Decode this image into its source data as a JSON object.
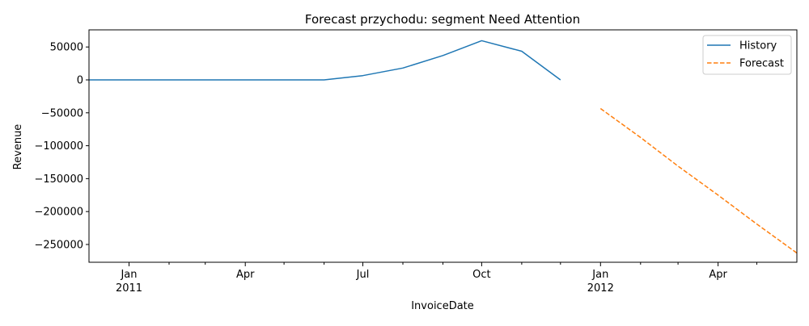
{
  "chart_data": {
    "type": "line",
    "title": "Forecast przychodu: segment Need Attention",
    "xlabel": "InvoiceDate",
    "ylabel": "Revenue",
    "x_range": [
      "2010-12-01",
      "2012-06-01"
    ],
    "ylim": [
      -277000,
      76000
    ],
    "yticks": [
      50000,
      0,
      -50000,
      -100000,
      -150000,
      -200000,
      -250000
    ],
    "ytick_labels": [
      "50000",
      "0",
      "−50000",
      "−100000",
      "−150000",
      "−200000",
      "−250000"
    ],
    "xticks_major": [
      {
        "date": "2011-01-01",
        "label": "Jan",
        "sublabel": "2011"
      },
      {
        "date": "2011-04-01",
        "label": "Apr",
        "sublabel": ""
      },
      {
        "date": "2011-07-01",
        "label": "Jul",
        "sublabel": ""
      },
      {
        "date": "2011-10-01",
        "label": "Oct",
        "sublabel": ""
      },
      {
        "date": "2012-01-01",
        "label": "Jan",
        "sublabel": "2012"
      },
      {
        "date": "2012-04-01",
        "label": "Apr",
        "sublabel": ""
      }
    ],
    "xticks_minor": [
      "2011-02-01",
      "2011-03-01",
      "2011-05-01",
      "2011-06-01",
      "2011-08-01",
      "2011-09-01",
      "2011-11-01",
      "2011-12-01",
      "2012-02-01",
      "2012-03-01",
      "2012-05-01"
    ],
    "grid": false,
    "legend_position": "top-right",
    "series": [
      {
        "name": "History",
        "color": "#1f77b4",
        "style": "solid",
        "x": [
          "2010-12-01",
          "2011-01-01",
          "2011-02-01",
          "2011-03-01",
          "2011-04-01",
          "2011-05-01",
          "2011-06-01",
          "2011-07-01",
          "2011-08-01",
          "2011-09-01",
          "2011-10-01",
          "2011-11-01",
          "2011-12-01"
        ],
        "y": [
          0,
          0,
          0,
          0,
          0,
          0,
          0,
          6500,
          18000,
          37000,
          59500,
          43500,
          0
        ]
      },
      {
        "name": "Forecast",
        "color": "#ff7f0e",
        "style": "dashed",
        "x": [
          "2012-01-01",
          "2012-02-01",
          "2012-03-01",
          "2012-04-01",
          "2012-05-01",
          "2012-06-01"
        ],
        "y": [
          -43500,
          -87500,
          -131000,
          -175000,
          -219000,
          -263000
        ]
      }
    ]
  }
}
